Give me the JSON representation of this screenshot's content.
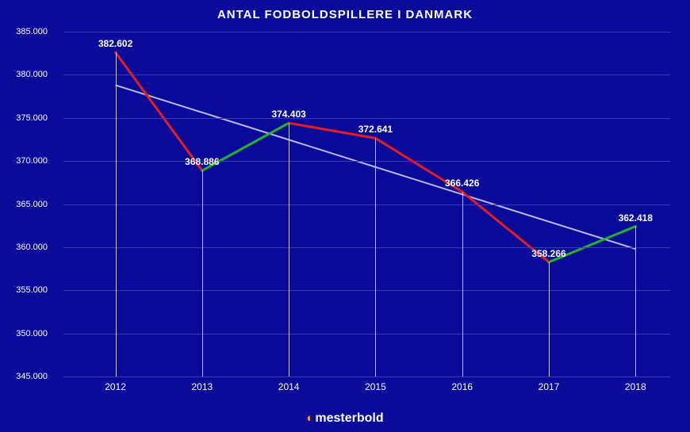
{
  "chart": {
    "type": "line",
    "title": "ANTAL FODBOLDSPILLERE I DANMARK",
    "title_fontsize": 15,
    "background_color": "#0a0a9a",
    "grid_color": "#3a3ab8",
    "text_color": "#ffffff",
    "dropline_color": "#c8c8e8",
    "x": {
      "categories": [
        "2012",
        "2013",
        "2014",
        "2015",
        "2016",
        "2017",
        "2018"
      ]
    },
    "y": {
      "min": 345000,
      "max": 385000,
      "tick_step": 5000,
      "tick_format": "da-thousand",
      "label_fontsize": 11
    },
    "series": [
      {
        "name": "trend",
        "type": "trendline",
        "color": "#b8b8e0",
        "line_width": 2,
        "points": [
          378800,
          359800
        ]
      }
    ],
    "data": {
      "values": [
        382602,
        368886,
        374403,
        372641,
        366426,
        358266,
        362418
      ],
      "labels": [
        "382.602",
        "368.886",
        "374.403",
        "372.641",
        "366.426",
        "358.266",
        "362.418"
      ],
      "up_color": "#1fb822",
      "down_color": "#e81c1c",
      "line_width": 3
    },
    "brand": {
      "text": "mesterbold",
      "icon_color": "#f5a623"
    }
  }
}
